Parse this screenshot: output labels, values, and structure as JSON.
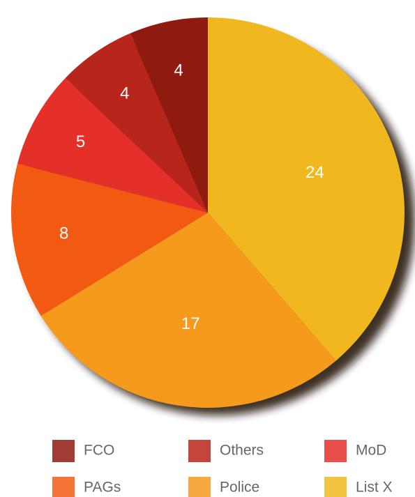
{
  "chart_data": {
    "type": "pie",
    "categories": [
      "List X",
      "Police",
      "PAGs",
      "MoD",
      "Others",
      "FCO"
    ],
    "values": [
      24,
      17,
      8,
      5,
      4,
      4
    ],
    "colors": [
      "#f0b81e",
      "#f59a1c",
      "#f25a14",
      "#e5302a",
      "#b8251a",
      "#8f1a10"
    ],
    "legend_order": [
      5,
      4,
      3,
      2,
      1,
      0
    ]
  }
}
